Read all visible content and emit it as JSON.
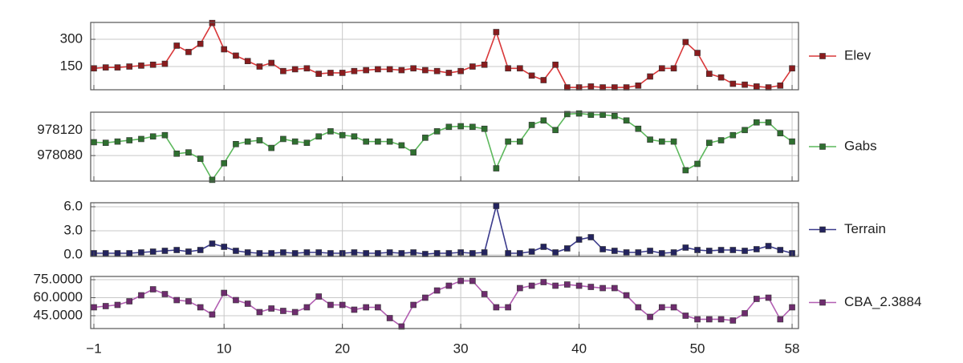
{
  "chart_data": [
    {
      "type": "line",
      "series": [
        {
          "name": "Elev",
          "color": "#d9383a",
          "marker_color": "#8a1c1e",
          "values": [
            140,
            145,
            145,
            150,
            155,
            160,
            165,
            265,
            230,
            275,
            390,
            245,
            210,
            180,
            150,
            170,
            125,
            135,
            140,
            110,
            115,
            115,
            125,
            130,
            135,
            135,
            130,
            140,
            130,
            125,
            115,
            125,
            150,
            160,
            340,
            140,
            140,
            100,
            75,
            160,
            35,
            35,
            40,
            35,
            35,
            35,
            45,
            95,
            140,
            140,
            285,
            225,
            110,
            90,
            55,
            50,
            40,
            35,
            45,
            140
          ]
        }
      ],
      "x": [
        -1,
        0,
        1,
        2,
        3,
        4,
        5,
        6,
        7,
        8,
        9,
        10,
        11,
        12,
        13,
        14,
        15,
        16,
        17,
        18,
        19,
        20,
        21,
        22,
        23,
        24,
        25,
        26,
        27,
        28,
        29,
        30,
        31,
        32,
        33,
        34,
        35,
        36,
        37,
        38,
        39,
        40,
        41,
        42,
        43,
        44,
        45,
        46,
        47,
        48,
        49,
        50,
        51,
        52,
        53,
        54,
        55,
        56,
        57,
        58
      ],
      "ylim": [
        22,
        393
      ],
      "yticks": [
        150,
        300
      ],
      "grid": true
    },
    {
      "type": "line",
      "series": [
        {
          "name": "Gabs",
          "color": "#5cb85c",
          "marker_color": "#2f6f30",
          "values": [
            978101,
            978100,
            978102,
            978104,
            978106,
            978110,
            978112,
            978083,
            978085,
            978075,
            978042,
            978068,
            978098,
            978102,
            978104,
            978092,
            978106,
            978102,
            978100,
            978110,
            978118,
            978112,
            978110,
            978102,
            978102,
            978102,
            978096,
            978085,
            978108,
            978118,
            978125,
            978126,
            978125,
            978122,
            978060,
            978102,
            978102,
            978128,
            978135,
            978120,
            978145,
            978146,
            978144,
            978144,
            978142,
            978135,
            978122,
            978105,
            978102,
            978102,
            978057,
            978067,
            978100,
            978104,
            978112,
            978120,
            978132,
            978132,
            978115,
            978102
          ]
        }
      ],
      "x": [
        -1,
        0,
        1,
        2,
        3,
        4,
        5,
        6,
        7,
        8,
        9,
        10,
        11,
        12,
        13,
        14,
        15,
        16,
        17,
        18,
        19,
        20,
        21,
        22,
        23,
        24,
        25,
        26,
        27,
        28,
        29,
        30,
        31,
        32,
        33,
        34,
        35,
        36,
        37,
        38,
        39,
        40,
        41,
        42,
        43,
        44,
        45,
        46,
        47,
        48,
        49,
        50,
        51,
        52,
        53,
        54,
        55,
        56,
        57,
        58
      ],
      "ylim": [
        978040,
        978148
      ],
      "yticks": [
        978080,
        978120
      ],
      "grid": true
    },
    {
      "type": "line",
      "series": [
        {
          "name": "Terrain",
          "color": "#3b3b8c",
          "marker_color": "#23235e",
          "values": [
            0.2,
            0.2,
            0.2,
            0.2,
            0.3,
            0.4,
            0.5,
            0.6,
            0.4,
            0.6,
            1.4,
            1.0,
            0.5,
            0.3,
            0.2,
            0.2,
            0.3,
            0.2,
            0.3,
            0.3,
            0.2,
            0.2,
            0.3,
            0.2,
            0.2,
            0.3,
            0.2,
            0.3,
            0.1,
            0.2,
            0.2,
            0.3,
            0.2,
            0.3,
            6.1,
            0.2,
            0.2,
            0.4,
            1.0,
            0.3,
            0.8,
            1.9,
            2.2,
            0.7,
            0.5,
            0.3,
            0.3,
            0.5,
            0.2,
            0.3,
            0.9,
            0.6,
            0.5,
            0.6,
            0.6,
            0.5,
            0.7,
            1.1,
            0.6,
            0.2
          ]
        }
      ],
      "x": [
        -1,
        0,
        1,
        2,
        3,
        4,
        5,
        6,
        7,
        8,
        9,
        10,
        11,
        12,
        13,
        14,
        15,
        16,
        17,
        18,
        19,
        20,
        21,
        22,
        23,
        24,
        25,
        26,
        27,
        28,
        29,
        30,
        31,
        32,
        33,
        34,
        35,
        36,
        37,
        38,
        39,
        40,
        41,
        42,
        43,
        44,
        45,
        46,
        47,
        48,
        49,
        50,
        51,
        52,
        53,
        54,
        55,
        56,
        57,
        58
      ],
      "ylim": [
        -0.2,
        6.5
      ],
      "yticks": [
        {
          "value": 0,
          "label": "0.0"
        },
        {
          "value": 3,
          "label": "3.0"
        },
        {
          "value": 6,
          "label": "6.0"
        }
      ],
      "grid": true
    },
    {
      "type": "line",
      "series": [
        {
          "name": "CBA_2.3884",
          "color": "#b25fb2",
          "marker_color": "#6e2c6e",
          "values": [
            52,
            53,
            54,
            57,
            62,
            67,
            63,
            58,
            57,
            52,
            46,
            64,
            58,
            55,
            48,
            51,
            49,
            48,
            52,
            61,
            54,
            54,
            50,
            52,
            52,
            43,
            36,
            54,
            60,
            66,
            70,
            74,
            74,
            63,
            52,
            52,
            68,
            70,
            73,
            70,
            71,
            70,
            69,
            68,
            68,
            62,
            52,
            44,
            52,
            52,
            45,
            42,
            42,
            42,
            41,
            47,
            59,
            60,
            42,
            52
          ]
        }
      ],
      "x": [
        -1,
        0,
        1,
        2,
        3,
        4,
        5,
        6,
        7,
        8,
        9,
        10,
        11,
        12,
        13,
        14,
        15,
        16,
        17,
        18,
        19,
        20,
        21,
        22,
        23,
        24,
        25,
        26,
        27,
        28,
        29,
        30,
        31,
        32,
        33,
        34,
        35,
        36,
        37,
        38,
        39,
        40,
        41,
        42,
        43,
        44,
        45,
        46,
        47,
        48,
        49,
        50,
        51,
        52,
        53,
        54,
        55,
        56,
        57,
        58
      ],
      "ylim": [
        34.3,
        77.7
      ],
      "yticks": [
        {
          "value": 45,
          "label": "45.0000"
        },
        {
          "value": 60,
          "label": "60.0000"
        },
        {
          "value": 75,
          "label": "75.0000"
        }
      ],
      "xlim": [
        -1.27,
        58.54
      ],
      "xticks": [
        {
          "value": -1,
          "label": "−1"
        },
        10,
        20,
        30,
        40,
        50,
        58
      ],
      "grid": true
    }
  ]
}
